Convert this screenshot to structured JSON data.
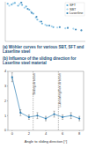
{
  "chart_data": [
    {
      "type": "scatter",
      "title": "(a) Wöhler curves for various SBT, SFT and Laserline steel",
      "xlim": [
        0,
        10
      ],
      "ylim": [
        0,
        1
      ],
      "tick_labels": false,
      "grid": false,
      "legend": "upper right",
      "series": [
        {
          "name": "SFT",
          "color": "#5aa9d6",
          "marker": "circle",
          "x": [
            0.3,
            0.8,
            1.2,
            1.6,
            2.1,
            2.6,
            3.0,
            3.5,
            4.0,
            4.6,
            5.2,
            6.0
          ],
          "values": [
            0.95,
            0.93,
            0.97,
            0.9,
            0.92,
            0.88,
            0.8,
            0.7,
            0.55,
            0.45,
            0.4,
            0.36
          ]
        },
        {
          "name": "SBT",
          "color": "#9ed0ec",
          "marker": "circle",
          "x": [
            0.5,
            1.0,
            1.8,
            2.4,
            3.2,
            3.8,
            4.3,
            5.0,
            5.8,
            6.5,
            7.5,
            8.5
          ],
          "values": [
            0.9,
            0.96,
            0.94,
            0.85,
            0.75,
            0.6,
            0.5,
            0.42,
            0.38,
            0.35,
            0.33,
            0.32
          ]
        },
        {
          "name": "Laserline",
          "color": "#2f7fb5",
          "marker": "circle",
          "x": [
            2.0,
            2.8,
            3.3,
            3.9,
            4.5,
            5.5,
            6.8,
            7.8,
            8.8,
            9.5
          ],
          "values": [
            0.98,
            0.82,
            0.72,
            0.62,
            0.5,
            0.4,
            0.36,
            0.34,
            0.3,
            0.28
          ]
        }
      ]
    },
    {
      "type": "line",
      "title": "(b) Influence of the sliding direction for Laserline steel material",
      "x_label": "Angle to sliding direction [°]",
      "x": [
        0,
        1,
        2,
        3,
        4,
        5,
        6,
        7,
        8
      ],
      "values": [
        3.6,
        1.2,
        0.9,
        1.0,
        0.8,
        1.1,
        0.9,
        1.0,
        0.8
      ],
      "errors": [
        0.3,
        0.2,
        0.15,
        0.2,
        0.15,
        0.2,
        0.15,
        0.2,
        0.15
      ],
      "color": "#2f7fb5",
      "marker": "circle",
      "line_style": "solid",
      "grid": false,
      "xlim": [
        -0.5,
        8.5
      ],
      "xticks": [
        0,
        2,
        4,
        6,
        8
      ],
      "ylim": [
        0,
        4
      ],
      "yticks": [
        0,
        1,
        2,
        3,
        4
      ],
      "annotations": [
        {
          "x": 2.5,
          "label": "Sliding direction"
        },
        {
          "x": 5.5,
          "label": "Lubricating flow direction"
        }
      ]
    }
  ]
}
